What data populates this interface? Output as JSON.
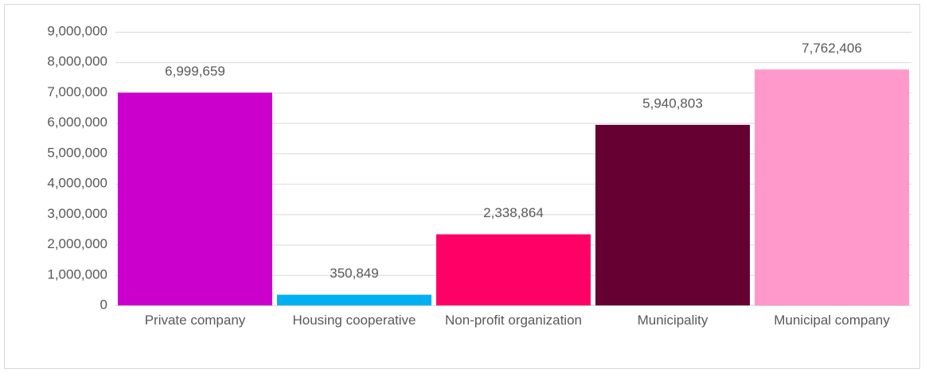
{
  "chart_data": {
    "type": "bar",
    "categories": [
      "Private company",
      "Housing cooperative",
      "Non-profit organization",
      "Municipality",
      "Municipal company"
    ],
    "values": [
      6999659,
      350849,
      2338864,
      5940803,
      7762406
    ],
    "value_labels": [
      "6,999,659",
      "350,849",
      "2,338,864",
      "5,940,803",
      "7,762,406"
    ],
    "colors": [
      "#cc00cc",
      "#00b0f0",
      "#ff0066",
      "#660033",
      "#ff99cc"
    ],
    "ylim": [
      0,
      9000000
    ],
    "yticks": [
      0,
      {
        "value": 1000000,
        "label": "1,000,000"
      },
      {
        "value": 2000000,
        "label": "2,000,000"
      },
      {
        "value": 3000000,
        "label": "3,000,000"
      },
      {
        "value": 4000000,
        "label": "4,000,000"
      },
      {
        "value": 5000000,
        "label": "5,000,000"
      },
      {
        "value": 6000000,
        "label": "6,000,000"
      },
      {
        "value": 7000000,
        "label": "7,000,000"
      },
      {
        "value": 8000000,
        "label": "8,000,000"
      },
      {
        "value": 9000000,
        "label": "9,000,000"
      }
    ],
    "grid": true
  }
}
